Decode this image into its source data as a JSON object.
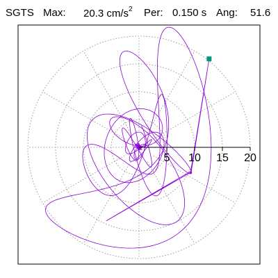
{
  "header": {
    "station": "SGTS",
    "max_label": "Max:",
    "max_value": "20.3",
    "max_unit": "cm/s",
    "max_unit_exp": "2",
    "per_label": "Per:",
    "per_value": "0.150 s",
    "ang_label": "Ang:",
    "ang_value": "51.6"
  },
  "chart_data": {
    "type": "polar-orbit",
    "title": "SGTS  Max: 20.3 cm/s2  Per: 0.150 s  Ang: 51.6",
    "rmax": 20,
    "rings": [
      5,
      10,
      15,
      20
    ],
    "ring_labels": [
      "5",
      "10",
      "15",
      "20"
    ],
    "spokes_deg": [
      0,
      30,
      60,
      90,
      120,
      150,
      180,
      210,
      240,
      270,
      300,
      330
    ],
    "grid": true,
    "max_value": 20.3,
    "max_angle_deg": 51.6,
    "orbit_color": "#8800d8",
    "marker_color": "#009977",
    "grid_color": "#999999",
    "frame_color": "#000000"
  }
}
